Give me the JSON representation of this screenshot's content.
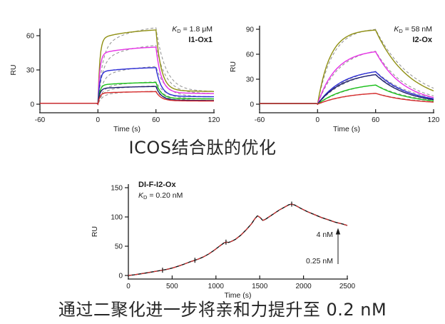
{
  "captions": {
    "top": "ICOS结合肽的优化",
    "bottom": "通过二聚化进一步将亲和力提升至 0.2 nM"
  },
  "chart_data": [
    {
      "id": "i1ox1",
      "type": "line",
      "subtype": "SPR sensorgram, multi-cycle kinetics",
      "title": "I1-Ox1",
      "kd": {
        "symbol": "K",
        "subscript": "D",
        "text": " = 1.8 μM"
      },
      "xlabel": "Time (s)",
      "ylabel": "RU",
      "xlim": [
        -60,
        120
      ],
      "ylim": [
        0,
        60
      ],
      "x_ticks": [
        -60,
        0,
        60,
        120
      ],
      "y_ticks": [
        0,
        30,
        60
      ],
      "grid": false,
      "baseline_ru": 0.8,
      "association_window_s": [
        0,
        60
      ],
      "kinetics": "fast",
      "fit_color": "#8f8f8f",
      "fit_style": "dashed",
      "series": [
        {
          "color": "#8F8F12",
          "plateau_ru": 65,
          "ru_at_120s": 12
        },
        {
          "color": "#E631E6",
          "plateau_ru": 50,
          "ru_at_120s": 10
        },
        {
          "color": "#2B2BD5",
          "plateau_ru": 32,
          "ru_at_120s": 7
        },
        {
          "color": "#17C117",
          "plateau_ru": 19,
          "ru_at_120s": 5
        },
        {
          "color": "#1C1C70",
          "plateau_ru": 15.5,
          "ru_at_120s": 3.5
        },
        {
          "color": "#D62B2B",
          "plateau_ru": 11,
          "ru_at_120s": 3
        }
      ]
    },
    {
      "id": "i2ox",
      "type": "line",
      "subtype": "SPR sensorgram, multi-cycle kinetics",
      "title": "I2-Ox",
      "kd": {
        "symbol": "K",
        "subscript": "D",
        "text": " = 58 nM"
      },
      "xlabel": "Time (s)",
      "ylabel": "RU",
      "xlim": [
        -60,
        120
      ],
      "ylim": [
        0,
        90
      ],
      "x_ticks": [
        -60,
        0,
        60,
        120
      ],
      "y_ticks": [
        0,
        30,
        60,
        90
      ],
      "grid": false,
      "baseline_ru": 0.8,
      "association_window_s": [
        0,
        60
      ],
      "kinetics": "slow",
      "fit_color": "#8f8f8f",
      "fit_style": "dashed",
      "series": [
        {
          "color": "#8F8F12",
          "plateau_ru": 89,
          "ru_at_120s": 16,
          "tau_assoc_s": 13
        },
        {
          "color": "#E631E6",
          "plateau_ru": 63,
          "ru_at_120s": 8,
          "tau_assoc_s": 19
        },
        {
          "color": "#2B2BD5",
          "plateau_ru": 39,
          "ru_at_120s": 6.5,
          "tau_assoc_s": 26
        },
        {
          "color": "#1C1C70",
          "plateau_ru": 35.5,
          "ru_at_120s": 5.5,
          "tau_assoc_s": 26
        },
        {
          "color": "#17C117",
          "plateau_ru": 23,
          "ru_at_120s": 4,
          "tau_assoc_s": 30
        },
        {
          "color": "#D62B2B",
          "plateau_ru": 13,
          "ru_at_120s": 2.5,
          "tau_assoc_s": 30
        }
      ]
    },
    {
      "id": "dif-i2ox",
      "type": "line",
      "subtype": "SPR sensorgram, single-cycle kinetics",
      "title": "DI-F-I2-Ox",
      "kd": {
        "symbol": "K",
        "subscript": "D",
        "text": " = 0.20 nM"
      },
      "xlabel": "Time (s)",
      "ylabel": "RU",
      "xlim": [
        0,
        2500
      ],
      "ylim": [
        0,
        150
      ],
      "x_ticks": [
        0,
        500,
        1000,
        1500,
        2000,
        2500
      ],
      "y_ticks": [
        0,
        50,
        100,
        150
      ],
      "grid": false,
      "data_color": "#141414",
      "fit_color": "#E03030",
      "fit_style": "dashed",
      "conc_arrow": {
        "high": "4 nM",
        "low": "0.25 nM",
        "direction": "up"
      },
      "injection_marks": [
        [
          390,
          9
        ],
        [
          760,
          26
        ],
        [
          1115,
          57
        ],
        [
          1865,
          122
        ]
      ],
      "points": [
        [
          0,
          0
        ],
        [
          60,
          1
        ],
        [
          150,
          3
        ],
        [
          250,
          5.5
        ],
        [
          330,
          7.5
        ],
        [
          390,
          9
        ],
        [
          440,
          10.5
        ],
        [
          510,
          13
        ],
        [
          570,
          16
        ],
        [
          630,
          19
        ],
        [
          700,
          23
        ],
        [
          760,
          26
        ],
        [
          800,
          28
        ],
        [
          860,
          32
        ],
        [
          920,
          37
        ],
        [
          980,
          43
        ],
        [
          1040,
          50
        ],
        [
          1090,
          55.5
        ],
        [
          1115,
          57
        ],
        [
          1145,
          56.5
        ],
        [
          1175,
          58
        ],
        [
          1225,
          62
        ],
        [
          1285,
          69
        ],
        [
          1345,
          78
        ],
        [
          1405,
          88
        ],
        [
          1445,
          97
        ],
        [
          1475,
          102
        ],
        [
          1505,
          99
        ],
        [
          1535,
          94
        ],
        [
          1565,
          96
        ],
        [
          1605,
          100
        ],
        [
          1665,
          106
        ],
        [
          1725,
          112
        ],
        [
          1785,
          117
        ],
        [
          1835,
          121
        ],
        [
          1865,
          122
        ],
        [
          1905,
          120
        ],
        [
          1965,
          115
        ],
        [
          2045,
          109
        ],
        [
          2125,
          104
        ],
        [
          2205,
          99
        ],
        [
          2285,
          95
        ],
        [
          2365,
          91
        ],
        [
          2445,
          88
        ],
        [
          2500,
          85.5
        ]
      ]
    }
  ]
}
